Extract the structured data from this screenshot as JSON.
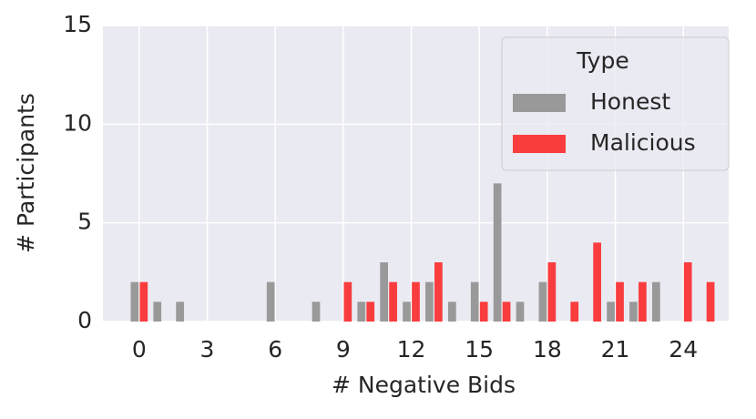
{
  "chart_data": {
    "type": "bar",
    "xlabel": "# Negative Bids",
    "ylabel": "# Participants",
    "x": [
      0,
      1,
      2,
      3,
      4,
      5,
      6,
      7,
      8,
      9,
      10,
      11,
      12,
      13,
      14,
      15,
      16,
      17,
      18,
      19,
      20,
      21,
      22,
      23,
      24,
      25
    ],
    "series": [
      {
        "name": "Honest",
        "color": "#999999",
        "values": [
          2,
          1,
          1,
          0,
          0,
          0,
          2,
          0,
          1,
          0,
          1,
          3,
          1,
          2,
          1,
          2,
          7,
          1,
          2,
          0,
          0,
          1,
          1,
          2,
          0,
          0
        ]
      },
      {
        "name": "Malicious",
        "color": "#f93c3e",
        "values": [
          2,
          0,
          0,
          0,
          0,
          0,
          0,
          0,
          0,
          2,
          1,
          2,
          2,
          3,
          0,
          1,
          1,
          0,
          3,
          1,
          4,
          2,
          2,
          0,
          3,
          2
        ]
      }
    ],
    "legend_title": "Type",
    "legend": "upper right",
    "xlim": [
      -1.6,
      26
    ],
    "xticks": [
      0,
      3,
      6,
      9,
      12,
      15,
      18,
      21,
      24
    ],
    "ylim": [
      0,
      15
    ],
    "yticks": [
      0,
      5,
      10,
      15
    ],
    "grid": true
  }
}
